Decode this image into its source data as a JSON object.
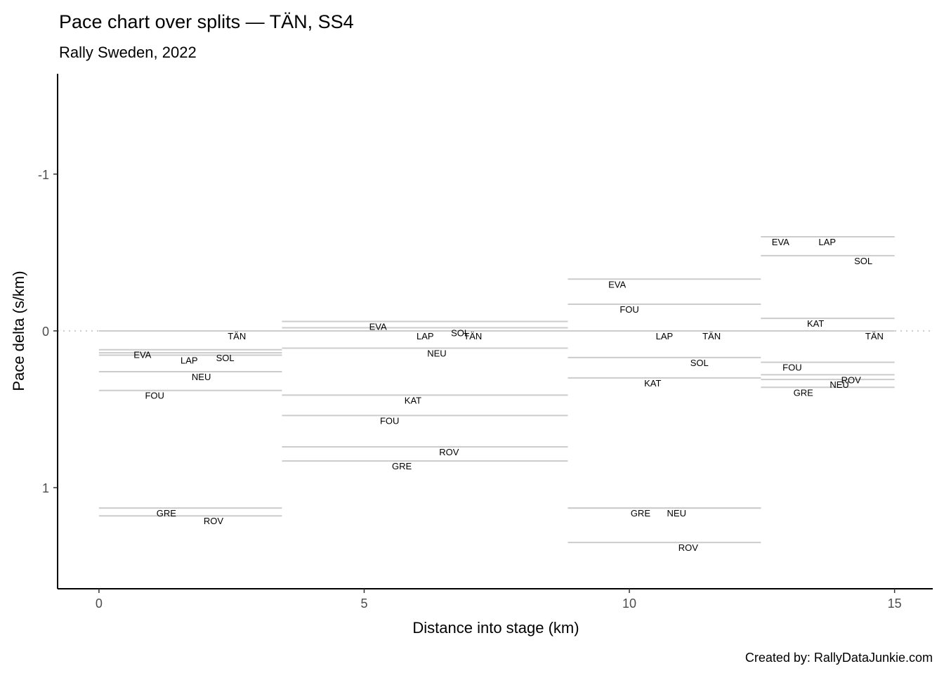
{
  "chart_data": {
    "type": "line",
    "title": "Pace chart over splits — TÄN, SS4",
    "subtitle": "Rally Sweden, 2022",
    "xlabel": "Distance into stage (km)",
    "ylabel": "Pace delta (s/km)",
    "caption": "Created by: RallyDataJunkie.com",
    "xlim": [
      -0.78,
      15.72
    ],
    "ylim": [
      -1.64,
      1.645
    ],
    "y_reversed": true,
    "xticks": [
      0,
      5,
      10,
      15
    ],
    "xtick_labels": [
      "0",
      "5",
      "10",
      "15"
    ],
    "yticks": [
      -1,
      0,
      1
    ],
    "ytick_labels": [
      "-1",
      "0",
      "1"
    ],
    "reference_line": 0,
    "grid": false,
    "splits": [
      {
        "start": 0,
        "end": 3.45,
        "drivers": [
          {
            "name": "TÄN",
            "value": 0,
            "label_km": 2.6
          },
          {
            "name": "EVA",
            "value": 0.12,
            "label_km": 0.82
          },
          {
            "name": "SOL",
            "value": 0.14,
            "label_km": 2.38
          },
          {
            "name": "LAP",
            "value": 0.155,
            "label_km": 1.7
          },
          {
            "name": "NEU",
            "value": 0.26,
            "label_km": 1.93
          },
          {
            "name": "FOU",
            "value": 0.38,
            "label_km": 1.05
          },
          {
            "name": "GRE",
            "value": 1.13,
            "label_km": 1.27
          },
          {
            "name": "ROV",
            "value": 1.18,
            "label_km": 2.16
          }
        ]
      },
      {
        "start": 3.45,
        "end": 8.84,
        "drivers": [
          {
            "name": "EVA",
            "value": -0.06,
            "label_km": 5.26
          },
          {
            "name": "SOL",
            "value": -0.02,
            "label_km": 6.81
          },
          {
            "name": "LAP",
            "value": 0.0,
            "label_km": 6.15
          },
          {
            "name": "TÄN",
            "value": 0,
            "label_km": 7.05
          },
          {
            "name": "NEU",
            "value": 0.11,
            "label_km": 6.37
          },
          {
            "name": "KAT",
            "value": 0.41,
            "label_km": 5.92
          },
          {
            "name": "FOU",
            "value": 0.54,
            "label_km": 5.48
          },
          {
            "name": "ROV",
            "value": 0.74,
            "label_km": 6.6
          },
          {
            "name": "GRE",
            "value": 0.83,
            "label_km": 5.71
          }
        ]
      },
      {
        "start": 8.84,
        "end": 12.48,
        "drivers": [
          {
            "name": "EVA",
            "value": -0.33,
            "label_km": 9.77
          },
          {
            "name": "FOU",
            "value": -0.17,
            "label_km": 10.0
          },
          {
            "name": "LAP",
            "value": 0.0,
            "label_km": 10.66
          },
          {
            "name": "TÄN",
            "value": 0,
            "label_km": 11.55
          },
          {
            "name": "SOL",
            "value": 0.17,
            "label_km": 11.32
          },
          {
            "name": "KAT",
            "value": 0.3,
            "label_km": 10.44
          },
          {
            "name": "GRE",
            "value": 1.13,
            "label_km": 10.21
          },
          {
            "name": "NEU",
            "value": 1.13,
            "label_km": 10.89
          },
          {
            "name": "ROV",
            "value": 1.35,
            "label_km": 11.11
          }
        ]
      },
      {
        "start": 12.48,
        "end": 15,
        "drivers": [
          {
            "name": "EVA",
            "value": -0.6,
            "label_km": 12.85
          },
          {
            "name": "LAP",
            "value": -0.6,
            "label_km": 13.73
          },
          {
            "name": "SOL",
            "value": -0.48,
            "label_km": 14.41
          },
          {
            "name": "KAT",
            "value": -0.08,
            "label_km": 13.51
          },
          {
            "name": "TÄN",
            "value": 0,
            "label_km": 14.62
          },
          {
            "name": "FOU",
            "value": 0.2,
            "label_km": 13.07
          },
          {
            "name": "ROV",
            "value": 0.28,
            "label_km": 14.18
          },
          {
            "name": "NEU",
            "value": 0.31,
            "label_km": 13.96
          },
          {
            "name": "GRE",
            "value": 0.36,
            "label_km": 13.28
          }
        ]
      }
    ],
    "colors": {
      "segment": "#cccccc",
      "reference": "#cccccc",
      "axis": "#000000",
      "label": "#000000"
    }
  }
}
